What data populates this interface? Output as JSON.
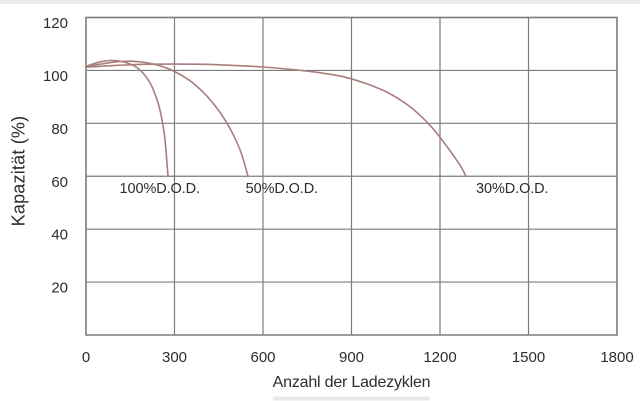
{
  "figure": {
    "background": "#ffffff",
    "top_strip_color": "#ececec",
    "artifact_color": "#c4c4c4"
  },
  "chart_data": {
    "type": "line",
    "title": "",
    "xlabel": "Anzahl der Ladezyklen",
    "ylabel": "Kapazität (%)",
    "xlim": [
      0,
      1800
    ],
    "ylim": [
      0,
      120
    ],
    "xticks": [
      0,
      300,
      600,
      900,
      1200,
      1500,
      1800
    ],
    "yticks": [
      20,
      40,
      60,
      80,
      100,
      120
    ],
    "grid": true,
    "legend_position": "none",
    "colors": {
      "curve": "#a87e7c",
      "grid": "#7c7c7c",
      "border": "#7c7c7c",
      "text": "#2d2d2d"
    },
    "series": [
      {
        "id": "100-dod",
        "name": "100% depth of discharge",
        "label": "100%D.O.D.",
        "points": [
          [
            0,
            101.5
          ],
          [
            30,
            102.7
          ],
          [
            60,
            103.5
          ],
          [
            90,
            103.8
          ],
          [
            120,
            103.4
          ],
          [
            150,
            102.4
          ],
          [
            175,
            100.9
          ],
          [
            195,
            98.8
          ],
          [
            215,
            95.7
          ],
          [
            235,
            90.8
          ],
          [
            250,
            85.3
          ],
          [
            262,
            78.5
          ],
          [
            270,
            71.5
          ],
          [
            278,
            60
          ]
        ]
      },
      {
        "id": "50-dod",
        "name": "50% depth of discharge",
        "label": "50%D.O.D.",
        "points": [
          [
            0,
            101.3
          ],
          [
            50,
            102.4
          ],
          [
            100,
            103.2
          ],
          [
            150,
            103.5
          ],
          [
            200,
            103
          ],
          [
            250,
            101.8
          ],
          [
            300,
            99.6
          ],
          [
            350,
            96.3
          ],
          [
            395,
            92
          ],
          [
            435,
            87
          ],
          [
            470,
            81.5
          ],
          [
            500,
            75.5
          ],
          [
            527,
            68.5
          ],
          [
            549,
            60
          ]
        ]
      },
      {
        "id": "30-dod",
        "name": "30% depth of discharge",
        "label": "30%D.O.D.",
        "points": [
          [
            0,
            101.2
          ],
          [
            100,
            101.9
          ],
          [
            200,
            102.3
          ],
          [
            300,
            102.4
          ],
          [
            400,
            102.3
          ],
          [
            500,
            101.9
          ],
          [
            600,
            101.3
          ],
          [
            700,
            100.3
          ],
          [
            800,
            99
          ],
          [
            880,
            97.4
          ],
          [
            950,
            95
          ],
          [
            1020,
            91.8
          ],
          [
            1080,
            87.8
          ],
          [
            1135,
            82.8
          ],
          [
            1185,
            76.8
          ],
          [
            1235,
            69.5
          ],
          [
            1270,
            63.8
          ],
          [
            1288,
            60
          ]
        ]
      }
    ],
    "annotations": [
      {
        "label": "100%D.O.D.",
        "x": 250,
        "y": 56
      },
      {
        "label": "50%D.O.D.",
        "x": 664,
        "y": 56
      },
      {
        "label": "30%D.O.D.",
        "x": 1445,
        "y": 56
      }
    ]
  }
}
